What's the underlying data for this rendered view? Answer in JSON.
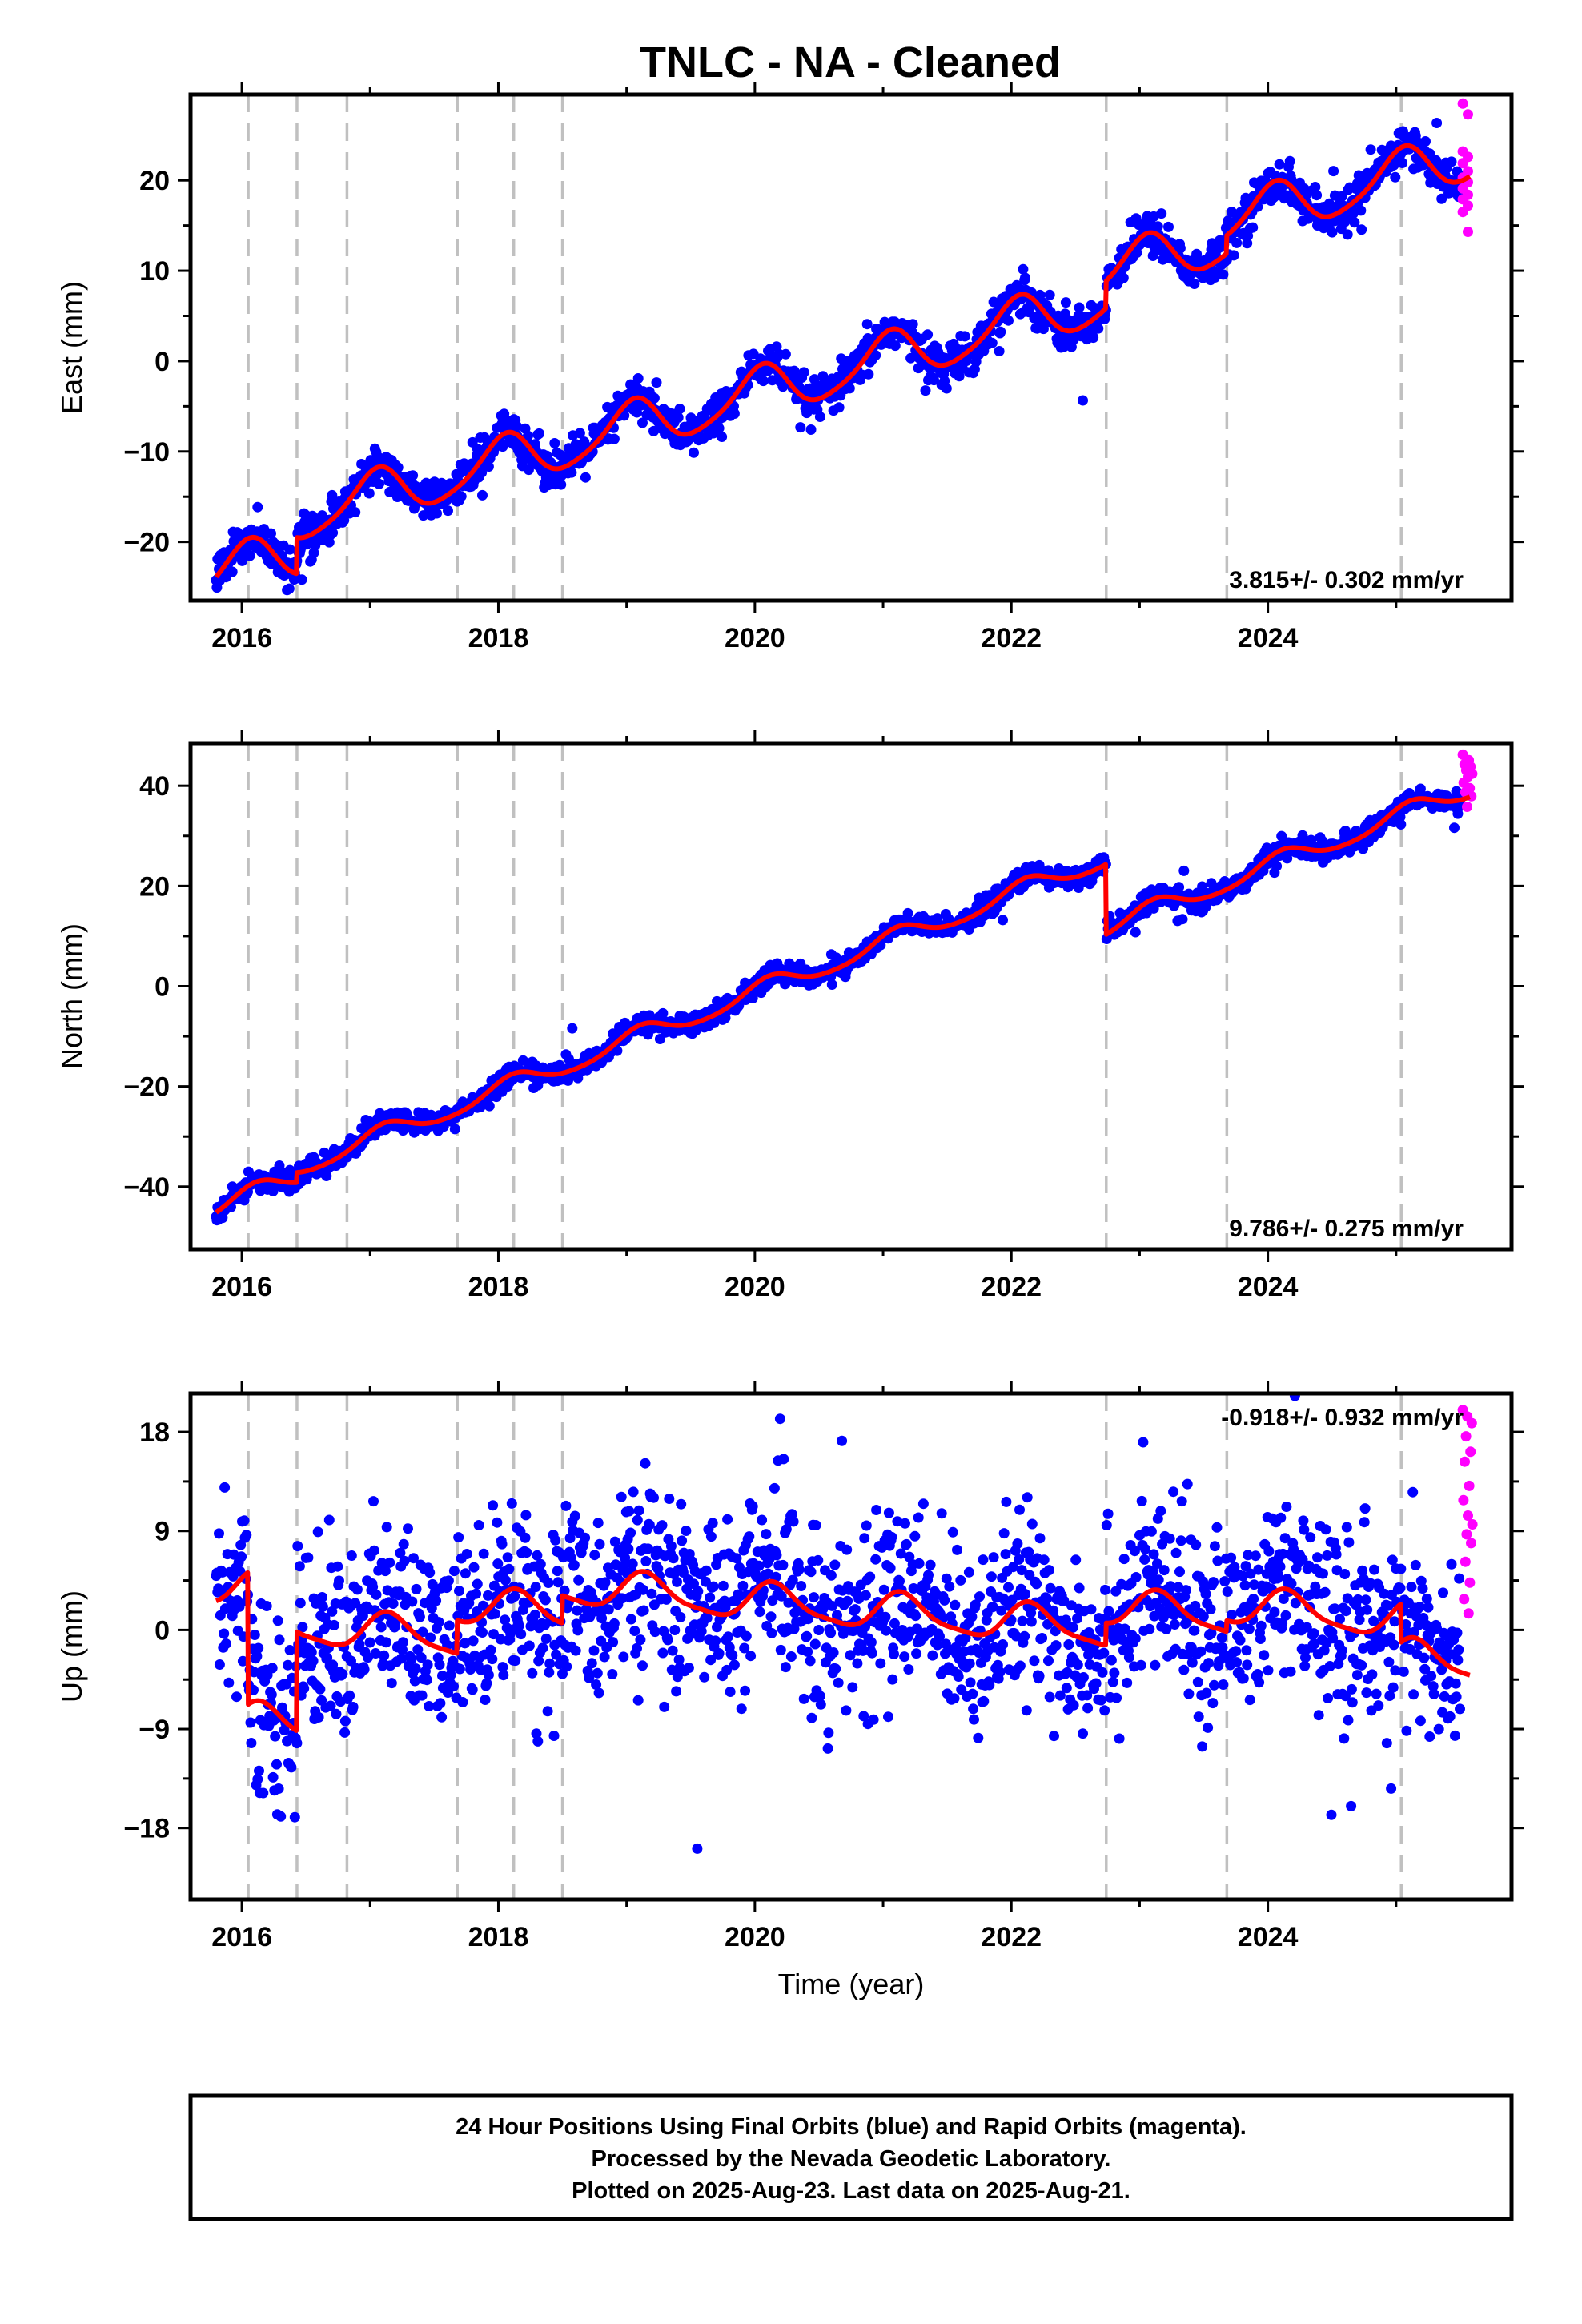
{
  "title": "TNLC  - NA - Cleaned",
  "colors": {
    "final_orbits": "#0000ff",
    "rapid_orbits": "#ff00ff",
    "model": "#ff0000",
    "events": "#c0c0c0"
  },
  "chart_data": [
    {
      "type": "scatter",
      "name": "east",
      "ylabel": "East (mm)",
      "xlabel": "",
      "xlim": [
        2015.6,
        2025.9
      ],
      "ylim": [
        -26.5,
        29.5
      ],
      "xticks": [
        2016,
        2018,
        2020,
        2022,
        2024
      ],
      "xtick_labels": [
        "2016",
        "2018",
        "2020",
        "2022",
        "2024"
      ],
      "yticks": [
        -20,
        -10,
        0,
        10,
        20
      ],
      "ytick_labels": [
        "−20",
        "−10",
        "0",
        "10",
        "20"
      ],
      "rate_label": "3.815+/- 0.302 mm/yr",
      "rate_position": "bottom-right",
      "event_lines": [
        2016.05,
        2016.43,
        2016.82,
        2017.68,
        2018.12,
        2018.5,
        2022.74,
        2023.68,
        2025.04
      ],
      "model": {
        "rate": 3.815,
        "intercept_year": 2020.5,
        "intercept": -1.2,
        "annual_amp": 2.7,
        "annual_phase": 1.3,
        "semiannual_amp": 0.45,
        "semiannual_phase": 0.3,
        "offsets": [
          [
            2016.43,
            4.0
          ],
          [
            2022.74,
            3.0
          ],
          [
            2023.68,
            2.0
          ]
        ]
      },
      "scatter_sigma": 1.1,
      "range": [
        2015.8,
        2025.5
      ],
      "rapid_range": [
        2025.52,
        2025.6
      ],
      "rapid_values": [
        28.5,
        27.3,
        23.2,
        22.6,
        21.9,
        21.0,
        20.3,
        19.8,
        19.1,
        18.4,
        17.9,
        17.2,
        16.5,
        14.3
      ]
    },
    {
      "type": "scatter",
      "name": "north",
      "ylabel": "North (mm)",
      "xlabel": "",
      "xlim": [
        2015.6,
        2025.9
      ],
      "ylim": [
        -52.5,
        48.5
      ],
      "xticks": [
        2016,
        2018,
        2020,
        2022,
        2024
      ],
      "xtick_labels": [
        "2016",
        "2018",
        "2020",
        "2022",
        "2024"
      ],
      "yticks": [
        -40,
        -20,
        0,
        20,
        40
      ],
      "ytick_labels": [
        "−40",
        "−20",
        "0",
        "20",
        "40"
      ],
      "rate_label": "9.786+/- 0.275 mm/yr",
      "rate_position": "bottom-right",
      "event_lines": [
        2016.05,
        2016.43,
        2016.82,
        2017.68,
        2018.12,
        2018.5,
        2022.74,
        2023.68,
        2025.04
      ],
      "model": {
        "rate": 9.786,
        "intercept_year": 2020.5,
        "intercept": -4.3,
        "annual_amp": 1.9,
        "annual_phase": 0.9,
        "semiannual_amp": 0.3,
        "semiannual_phase": 0.1,
        "offsets": [
          [
            2016.43,
            2.0
          ],
          [
            2022.74,
            -14.0
          ]
        ]
      },
      "scatter_sigma": 1.0,
      "range": [
        2015.8,
        2025.5
      ],
      "rapid_range": [
        2025.52,
        2025.6
      ],
      "rapid_values": [
        46.2,
        45.1,
        44.3,
        43.8,
        43.1,
        42.4,
        41.8,
        40.6,
        39.5,
        38.7,
        37.9,
        35.8
      ]
    },
    {
      "type": "scatter",
      "name": "up",
      "ylabel": "Up (mm)",
      "xlabel": "Time (year)",
      "xlim": [
        2015.6,
        2025.9
      ],
      "ylim": [
        -24.5,
        21.5
      ],
      "xticks": [
        2016,
        2018,
        2020,
        2022,
        2024
      ],
      "xtick_labels": [
        "2016",
        "2018",
        "2020",
        "2022",
        "2024"
      ],
      "yticks": [
        -18,
        -9,
        0,
        9,
        18
      ],
      "ytick_labels": [
        "−18",
        "−9",
        "0",
        "9",
        "18"
      ],
      "rate_label": "-0.918+/- 0.932 mm/yr",
      "rate_position": "top-right",
      "event_lines": [
        2016.05,
        2016.43,
        2016.82,
        2017.68,
        2018.12,
        2018.5,
        2022.74,
        2023.68,
        2025.04
      ],
      "model": {
        "rate": -0.918,
        "intercept_year": 2020.5,
        "intercept": 0.6,
        "annual_amp": 1.6,
        "annual_phase": 0.6,
        "semiannual_amp": 0.4,
        "semiannual_phase": 0.2,
        "offsets": [
          [
            2016.05,
            -12.0
          ],
          [
            2016.43,
            9.0
          ],
          [
            2017.68,
            3.0
          ],
          [
            2018.5,
            2.5
          ],
          [
            2022.74,
            2.0
          ],
          [
            2023.68,
            1.0
          ],
          [
            2025.04,
            -3.5
          ]
        ]
      },
      "scatter_sigma": 4.0,
      "range": [
        2015.8,
        2025.5
      ],
      "rapid_range": [
        2025.52,
        2025.6
      ],
      "rapid_values": [
        20.0,
        19.4,
        18.8,
        17.6,
        16.2,
        15.3,
        13.1,
        11.8,
        10.4,
        9.6,
        8.7,
        7.9,
        6.2,
        4.3,
        2.8,
        1.5
      ]
    }
  ],
  "footer": {
    "line1": "24 Hour Positions Using Final Orbits (blue) and Rapid Orbits (magenta).",
    "line2": "Processed by the Nevada Geodetic Laboratory.",
    "line3": "Plotted on 2025-Aug-23. Last data on 2025-Aug-21."
  }
}
